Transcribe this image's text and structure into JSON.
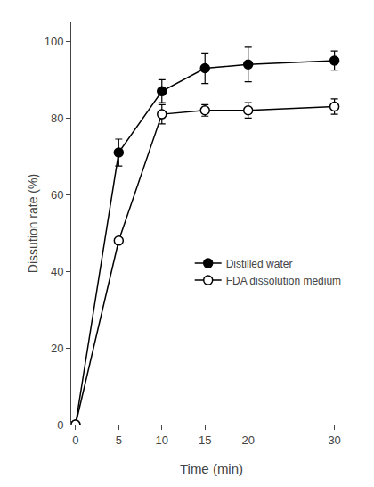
{
  "chart_data": {
    "type": "line",
    "xlabel": "Time (min)",
    "ylabel": "Dissution rate (%)",
    "x": [
      0,
      5,
      10,
      15,
      20,
      30
    ],
    "series": [
      {
        "name": "Distilled water",
        "color": "#000000",
        "marker": "circle",
        "values": [
          0,
          71,
          87,
          93,
          94,
          95
        ],
        "yerr": [
          0,
          3.5,
          3.0,
          4.0,
          4.5,
          2.5
        ]
      },
      {
        "name": "FDA dissolution medium",
        "color": "#000000",
        "marker": "circle-open",
        "values": [
          0,
          48,
          81,
          82,
          82,
          83
        ],
        "yerr": [
          0,
          0,
          2.5,
          1.5,
          2.0,
          2.0
        ]
      }
    ],
    "xlim": [
      -0.5,
      32
    ],
    "ylim": [
      0,
      105
    ],
    "xticks": [
      0,
      5,
      10,
      15,
      20,
      30
    ],
    "yticks": [
      0,
      20,
      40,
      60,
      80,
      100
    ],
    "grid": false,
    "legend": "right"
  }
}
